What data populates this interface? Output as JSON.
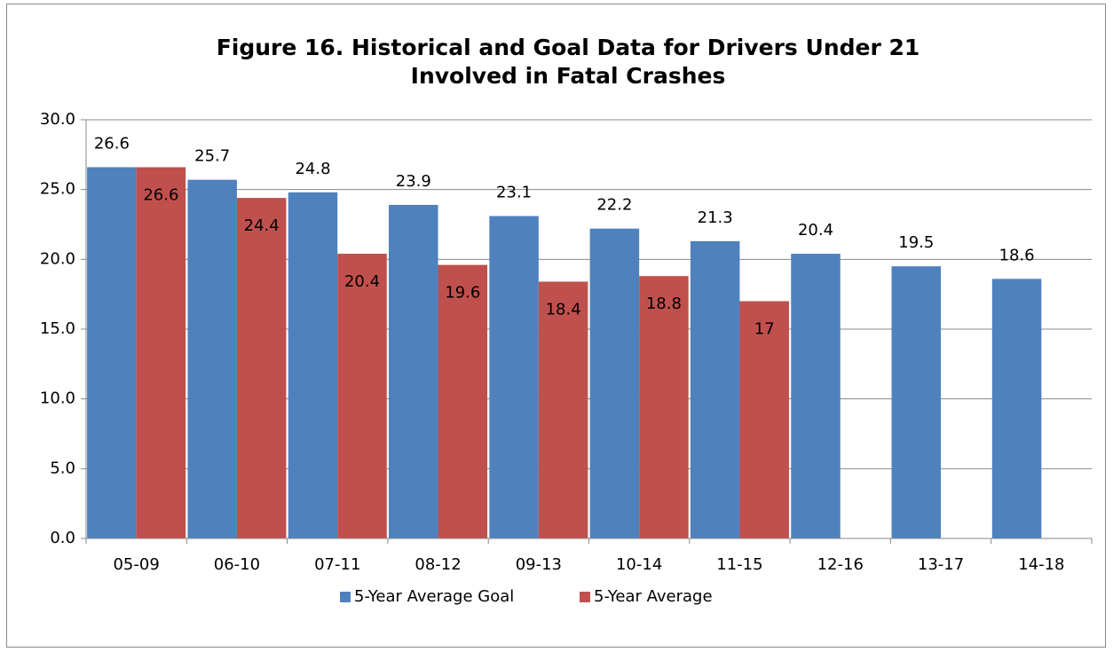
{
  "chart_data": {
    "type": "bar",
    "title": "Figure 16. Historical and Goal Data for Drivers Under 21 Involved in Fatal Crashes",
    "categories": [
      "05-09",
      "06-10",
      "07-11",
      "08-12",
      "09-13",
      "10-14",
      "11-15",
      "12-16",
      "13-17",
      "14-18"
    ],
    "series": [
      {
        "name": "5-Year Average Goal",
        "color": "#4f81bd",
        "values": [
          26.6,
          25.7,
          24.8,
          23.9,
          23.1,
          22.2,
          21.3,
          20.4,
          19.5,
          18.6
        ]
      },
      {
        "name": "5-Year Average",
        "color": "#c0504d",
        "values": [
          26.6,
          24.4,
          20.4,
          19.6,
          18.4,
          18.8,
          17,
          null,
          null,
          null
        ]
      }
    ],
    "ylim": [
      0,
      30
    ],
    "yticks": [
      {
        "value": 0,
        "label": "0.0"
      },
      {
        "value": 5,
        "label": "5.0"
      },
      {
        "value": 10,
        "label": "10.0"
      },
      {
        "value": 15,
        "label": "15.0"
      },
      {
        "value": 20,
        "label": "20.0"
      },
      {
        "value": 25,
        "label": "25.0"
      },
      {
        "value": 30,
        "label": "30.0"
      }
    ],
    "grid": true,
    "legend": "bottom"
  }
}
